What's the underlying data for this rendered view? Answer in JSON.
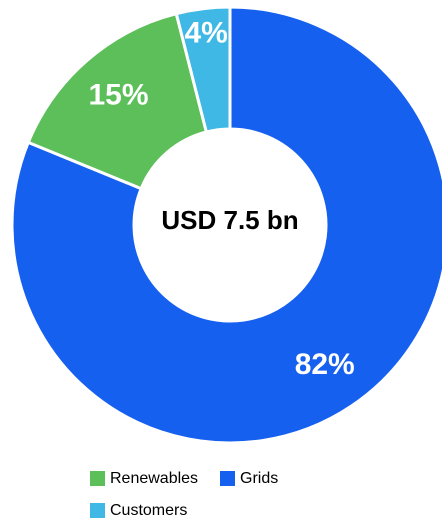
{
  "chart_data": {
    "type": "donut",
    "center_label": "USD 7.5 bn",
    "categories": [
      "Grids",
      "Renewables",
      "Customers"
    ],
    "values": [
      82,
      15,
      4
    ],
    "value_labels": [
      "82%",
      "15%",
      "4%"
    ],
    "colors": [
      "#1660f0",
      "#5cbf5a",
      "#3fb8e6"
    ],
    "legend": "bottom",
    "legend_order": [
      1,
      0,
      2
    ]
  }
}
